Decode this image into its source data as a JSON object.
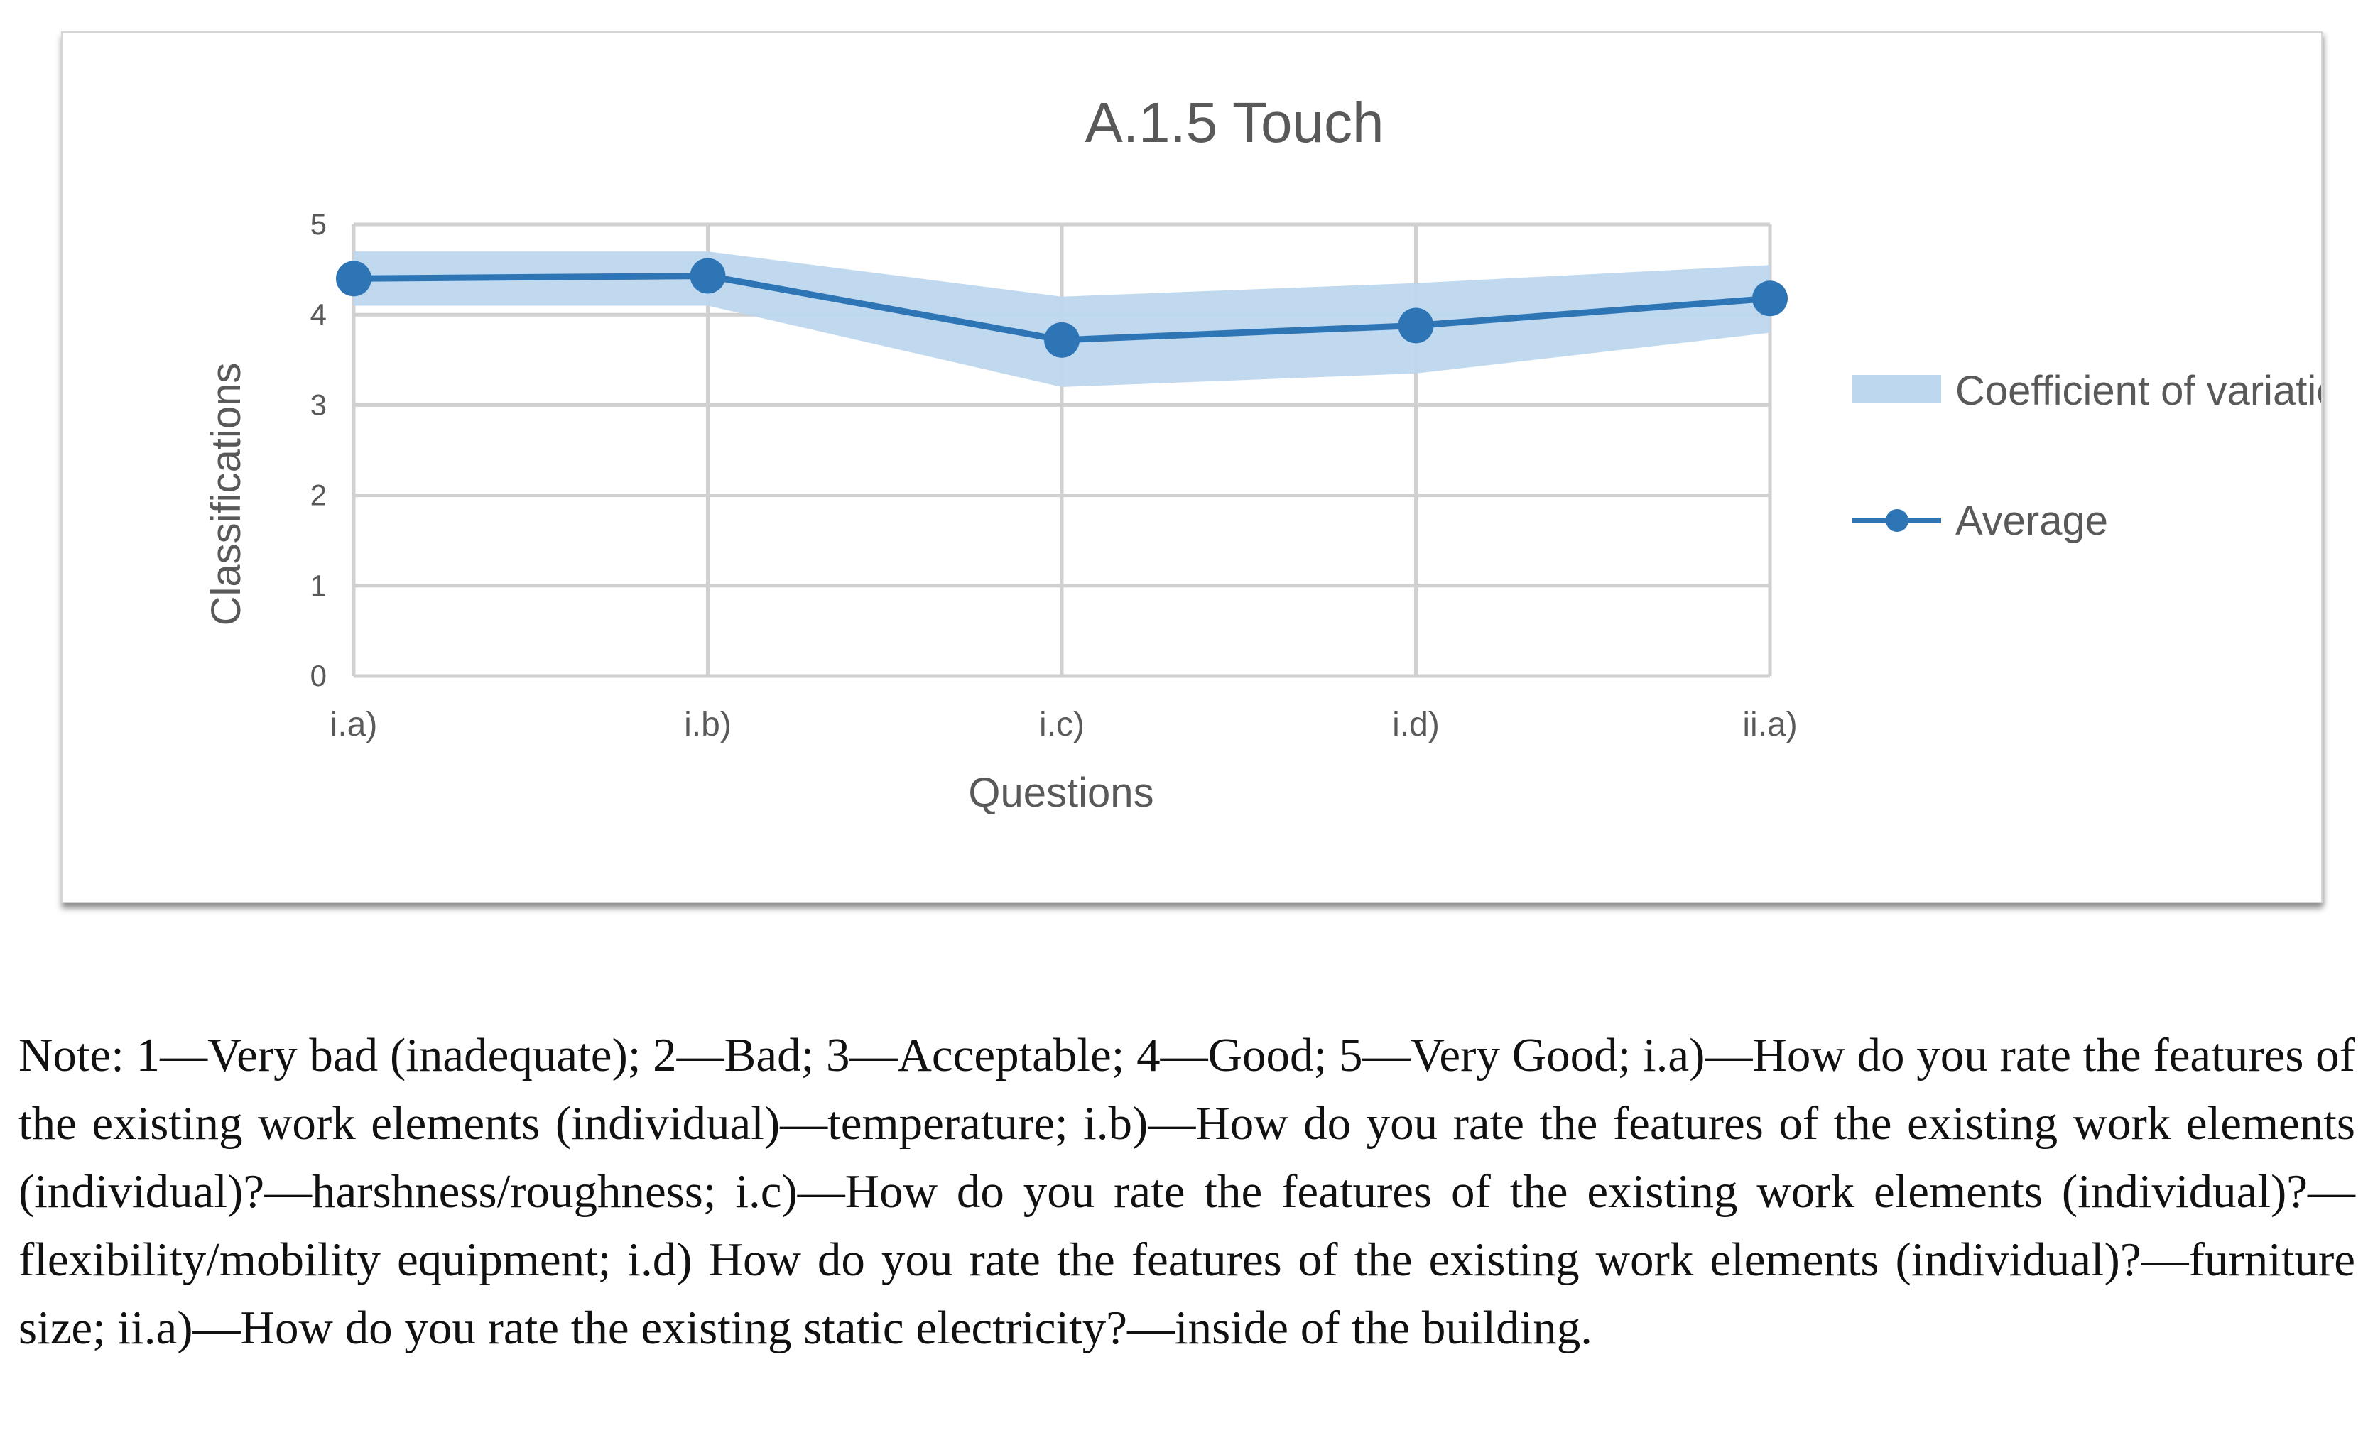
{
  "chart_data": {
    "type": "line",
    "title": "A.1.5 Touch",
    "xlabel": "Questions",
    "ylabel": "Classifications",
    "categories": [
      "i.a)",
      "i.b)",
      "i.c)",
      "i.d)",
      "ii.a)"
    ],
    "ylim": [
      0,
      5
    ],
    "yticks": [
      0,
      1,
      2,
      3,
      4,
      5
    ],
    "grid": true,
    "legend_position": "right",
    "series": [
      {
        "name": "Coefficient of variation",
        "kind": "band",
        "color": "#bdd7ee",
        "lower": [
          4.1,
          4.1,
          3.2,
          3.35,
          3.8
        ],
        "upper": [
          4.7,
          4.7,
          4.2,
          4.35,
          4.55
        ]
      },
      {
        "name": "Average",
        "kind": "line",
        "color": "#2e75b6",
        "values": [
          4.4,
          4.43,
          3.72,
          3.88,
          4.18
        ]
      }
    ]
  },
  "note": "Note: 1—Very bad (inadequate); 2—Bad; 3—Acceptable; 4—Good; 5—Very Good; i.a)—How do you rate the features of the existing work elements (individual)—temperature; i.b)—How do you rate the features of the existing work elements (individual)?—harshness/roughness; i.c)—How do you rate the features of the existing work elements (individual)?—flexibility/mobility equipment; i.d) How do you rate the features of the existing work elements (individual)?—furniture size; ii.a)—How do you rate the existing static electricity?—inside of the building."
}
